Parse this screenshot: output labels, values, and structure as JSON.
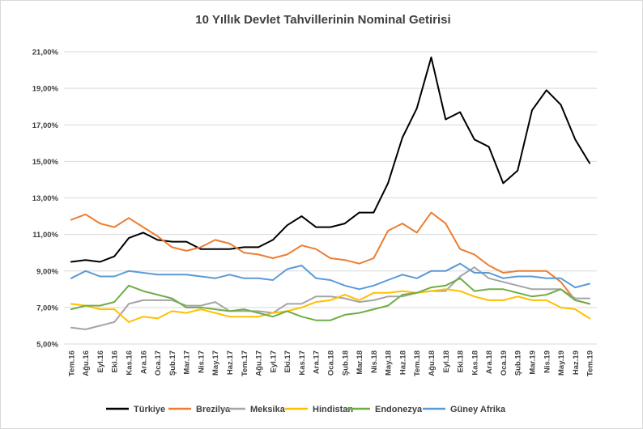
{
  "chart_data": {
    "type": "line",
    "title": "10 Yıllık Devlet Tahvillerinin Nominal Getirisi",
    "xlabel": "",
    "ylabel": "",
    "ylim": [
      5,
      21
    ],
    "y_ticks": [
      "5,00%",
      "7,00%",
      "9,00%",
      "11,00%",
      "13,00%",
      "15,00%",
      "17,00%",
      "19,00%",
      "21,00%"
    ],
    "y_tick_values": [
      5,
      7,
      9,
      11,
      13,
      15,
      17,
      19,
      21
    ],
    "grid": true,
    "legend_position": "bottom",
    "categories": [
      "Tem.16",
      "Ağu.16",
      "Eyl.16",
      "Eki.16",
      "Kas.16",
      "Ara.16",
      "Oca.17",
      "Şub.17",
      "Mar.17",
      "Nis.17",
      "May.17",
      "Haz.17",
      "Tem.17",
      "Ağu.17",
      "Eyl.17",
      "Eki.17",
      "Kas.17",
      "Ara.17",
      "Oca.18",
      "Şub.18",
      "Mar.18",
      "Nis.18",
      "May.18",
      "Haz.18",
      "Tem.18",
      "Ağu.18",
      "Eyl.18",
      "Eki.18",
      "Kas.18",
      "Ara.18",
      "Oca.19",
      "Şub.19",
      "Mar.19",
      "Nis.19",
      "May.19",
      "Haz.19",
      "Tem.19"
    ],
    "series": [
      {
        "name": "Türkiye",
        "color": "#000000",
        "values": [
          9.5,
          9.6,
          9.5,
          9.8,
          10.8,
          11.1,
          10.7,
          10.6,
          10.6,
          10.2,
          10.2,
          10.2,
          10.3,
          10.3,
          10.7,
          11.5,
          12.0,
          11.4,
          11.4,
          11.6,
          12.2,
          12.2,
          13.8,
          16.3,
          17.9,
          20.7,
          17.3,
          17.7,
          16.2,
          15.8,
          13.8,
          14.5,
          17.8,
          18.9,
          18.1,
          16.2,
          14.9
        ]
      },
      {
        "name": "Brezilya",
        "color": "#ED7D31",
        "values": [
          11.8,
          12.1,
          11.6,
          11.4,
          11.9,
          11.4,
          10.9,
          10.3,
          10.1,
          10.3,
          10.7,
          10.5,
          10.0,
          9.9,
          9.7,
          9.9,
          10.4,
          10.2,
          9.7,
          9.6,
          9.4,
          9.7,
          11.2,
          11.6,
          11.1,
          12.2,
          11.6,
          10.2,
          9.9,
          9.3,
          8.9,
          9.0,
          9.0,
          9.0,
          8.4,
          7.4,
          7.2
        ]
      },
      {
        "name": "Meksika",
        "color": "#A5A5A5",
        "values": [
          5.9,
          5.8,
          6.0,
          6.2,
          7.2,
          7.4,
          7.4,
          7.4,
          7.1,
          7.1,
          7.3,
          6.8,
          6.8,
          6.8,
          6.7,
          7.2,
          7.2,
          7.6,
          7.6,
          7.5,
          7.3,
          7.4,
          7.6,
          7.6,
          7.8,
          7.9,
          7.9,
          8.7,
          9.2,
          8.6,
          8.4,
          8.2,
          8.0,
          8.0,
          8.0,
          7.5,
          7.5
        ]
      },
      {
        "name": "Hindistan",
        "color": "#FFC000",
        "values": [
          7.2,
          7.1,
          6.9,
          6.9,
          6.2,
          6.5,
          6.4,
          6.8,
          6.7,
          6.9,
          6.7,
          6.5,
          6.5,
          6.5,
          6.7,
          6.8,
          7.0,
          7.3,
          7.4,
          7.7,
          7.4,
          7.8,
          7.8,
          7.9,
          7.8,
          7.9,
          8.0,
          7.9,
          7.6,
          7.4,
          7.4,
          7.6,
          7.4,
          7.4,
          7.0,
          6.9,
          6.4
        ]
      },
      {
        "name": "Endonezya",
        "color": "#70AD47",
        "values": [
          6.9,
          7.1,
          7.1,
          7.3,
          8.2,
          7.9,
          7.7,
          7.5,
          7.0,
          7.0,
          6.9,
          6.8,
          6.9,
          6.7,
          6.5,
          6.8,
          6.5,
          6.3,
          6.3,
          6.6,
          6.7,
          6.9,
          7.1,
          7.7,
          7.8,
          8.1,
          8.2,
          8.6,
          7.9,
          8.0,
          8.0,
          7.8,
          7.6,
          7.7,
          8.0,
          7.4,
          7.2
        ]
      },
      {
        "name": "Güney Afrika",
        "color": "#5B9BD5",
        "values": [
          8.6,
          9.0,
          8.7,
          8.7,
          9.0,
          8.9,
          8.8,
          8.8,
          8.8,
          8.7,
          8.6,
          8.8,
          8.6,
          8.6,
          8.5,
          9.1,
          9.3,
          8.6,
          8.5,
          8.2,
          8.0,
          8.2,
          8.5,
          8.8,
          8.6,
          9.0,
          9.0,
          9.4,
          8.9,
          8.9,
          8.6,
          8.7,
          8.7,
          8.6,
          8.6,
          8.1,
          8.3
        ]
      }
    ]
  }
}
